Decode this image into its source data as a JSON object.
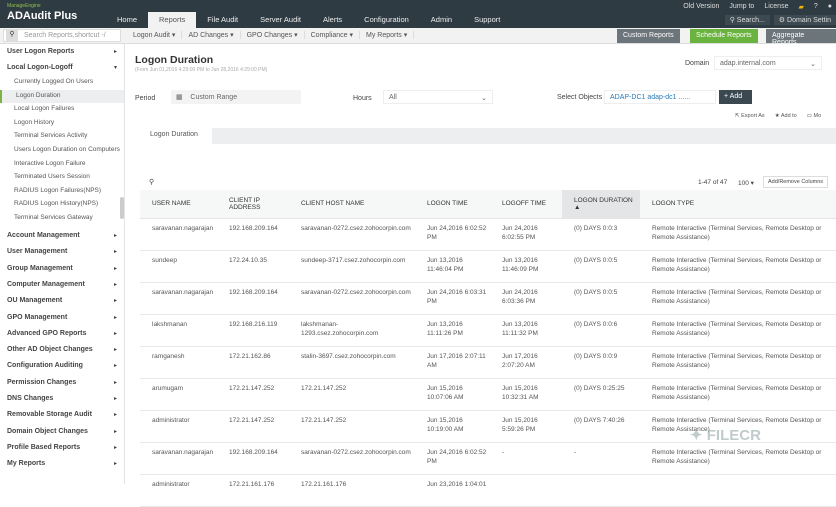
{
  "brand": {
    "small": "ManageEngine",
    "name": "ADAudit Plus"
  },
  "nav_tabs": [
    "Home",
    "Reports",
    "File Audit",
    "Server Audit",
    "Alerts",
    "Configuration",
    "Admin",
    "Support"
  ],
  "top_links": [
    "Old Version",
    "Jump to",
    "License",
    "?"
  ],
  "top_buttons": [
    "Search...",
    "Domain Settin"
  ],
  "search_placeholder": "Search Reports,shortcut -/",
  "menu": [
    "Logon Audit ▾",
    "AD Changes ▾",
    "GPO Changes ▾",
    "Compliance ▾",
    "My Reports ▾"
  ],
  "right_buttons": [
    {
      "label": "Custom Reports",
      "color": "#6c757a"
    },
    {
      "label": "Schedule Reports",
      "color": "#6bb33f"
    },
    {
      "label": "Aggregate Reports",
      "color": "#6c757a"
    }
  ],
  "sidebar": {
    "top": [
      {
        "label": "User Logon Reports",
        "arrow": "▸"
      },
      {
        "label": "Local Logon-Logoff",
        "arrow": "▾"
      }
    ],
    "subitems": [
      "Currently Logged On Users",
      "Logon Duration",
      "Local Logon Failures",
      "Logon History",
      "Terminal Services Activity",
      "Users Logon Duration on Computers",
      "Interactive Logon Failure",
      "Terminated Users Session",
      "RADIUS Logon Failures(NPS)",
      "RADIUS Logon History(NPS)",
      "Terminal Services Gateway"
    ],
    "selected": "Logon Duration",
    "groups": [
      "Account Management",
      "User Management",
      "Group Management",
      "Computer Management",
      "OU Management",
      "GPO Management",
      "Advanced GPO Reports",
      "Other AD Object Changes",
      "Configuration Auditing",
      "Permission Changes",
      "DNS Changes",
      "Removable Storage Audit",
      "Domain Object Changes",
      "Profile Based Reports",
      "My Reports"
    ]
  },
  "page": {
    "title": "Logon Duration",
    "subtitle": "(From Jun 01,2016 4:29:00 PM to Jun 28,2016 4:29:00 PM)",
    "domain_label": "Domain",
    "domain_value": "adap.internal.com",
    "period_label": "Period",
    "period_value": "Custom Range",
    "hours_label": "Hours",
    "hours_value": "All",
    "objects_label": "Select Objects",
    "objects_value": "ADAP-DC1 adap-dc1 ......",
    "add_label": "Add",
    "actions": [
      "Export As",
      "Add to",
      "Mo"
    ],
    "tab": "Logon Duration",
    "pagination": "1-47 of 47",
    "per_page": "100 ▾",
    "columns_button": "Add/Remove Columns"
  },
  "table": {
    "headers": [
      "USER NAME",
      "CLIENT IP ADDRESS",
      "CLIENT HOST NAME",
      "LOGON TIME",
      "LOGOFF TIME",
      "LOGON DURATION ▲",
      "LOGON TYPE"
    ],
    "rows": [
      [
        "saravanan.nagarajan",
        "192.168.209.164",
        "saravanan-0272.csez.zohocorpin.com",
        "Jun 24,2016 6:02:52 PM",
        "Jun 24,2016 6:02:55 PM",
        "(0) DAYS 0:0:3",
        "Remote Interactive (Terminal Services, Remote Desktop or Remote Assistance)"
      ],
      [
        "sundeep",
        "172.24.10.35",
        "sundeep-3717.csez.zohocorpin.com",
        "Jun 13,2016 11:46:04 PM",
        "Jun 13,2016 11:46:09 PM",
        "(0) DAYS 0:0:5",
        "Remote Interactive (Terminal Services, Remote Desktop or Remote Assistance)"
      ],
      [
        "saravanan.nagarajan",
        "192.168.209.164",
        "saravanan-0272.csez.zohocorpin.com",
        "Jun 24,2016 6:03:31 PM",
        "Jun 24,2016 6:03:36 PM",
        "(0) DAYS 0:0:5",
        "Remote Interactive (Terminal Services, Remote Desktop or Remote Assistance)"
      ],
      [
        "lakshmanan",
        "192.168.216.119",
        "lakshmanan-1293.csez.zohocorpin.com",
        "Jun 13,2016 11:11:26 PM",
        "Jun 13,2016 11:11:32 PM",
        "(0) DAYS 0:0:6",
        "Remote Interactive (Terminal Services, Remote Desktop or Remote Assistance)"
      ],
      [
        "ramganesh",
        "172.21.162.86",
        "stalin-3697.csez.zohocorpin.com",
        "Jun 17,2016 2:07:11 AM",
        "Jun 17,2016 2:07:20 AM",
        "(0) DAYS 0:0:9",
        "Remote Interactive (Terminal Services, Remote Desktop or Remote Assistance)"
      ],
      [
        "arumugam",
        "172.21.147.252",
        "172.21.147.252",
        "Jun 15,2016 10:07:06 AM",
        "Jun 15,2016 10:32:31 AM",
        "(0) DAYS 0:25:25",
        "Remote Interactive (Terminal Services, Remote Desktop or Remote Assistance)"
      ],
      [
        "administrator",
        "172.21.147.252",
        "172.21.147.252",
        "Jun 15,2016 10:19:00 AM",
        "Jun 15,2016 5:59:26 PM",
        "(0) DAYS 7:40:26",
        "Remote Interactive (Terminal Services, Remote Desktop or Remote Assistance)"
      ],
      [
        "saravanan.nagarajan",
        "192.168.209.164",
        "saravanan-0272.csez.zohocorpin.com",
        "Jun 24,2016 6:02:52 PM",
        "-",
        "-",
        "Remote Interactive (Terminal Services, Remote Desktop or Remote Assistance)"
      ],
      [
        "administrator",
        "172.21.161.176",
        "172.21.161.176",
        "Jun 23,2016 1:04:01",
        "",
        "",
        ""
      ]
    ]
  },
  "watermark": "FILECR"
}
